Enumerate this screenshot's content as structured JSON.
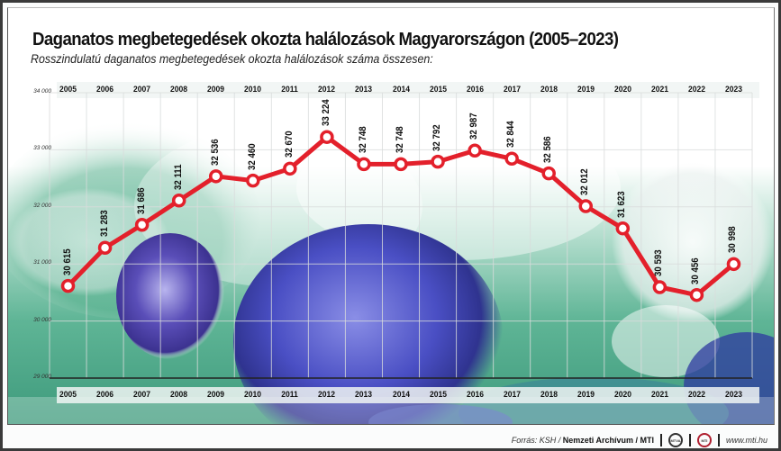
{
  "header": {
    "title": "Daganatos megbetegedések okozta halálozások Magyarországon (2005–2023)",
    "subtitle": "Rosszindulatú daganatos megbetegedések okozta halálozások száma összesen:"
  },
  "footer": {
    "source_prefix": "Forrás: KSH / ",
    "source_bold": "Nemzeti Archívum / MTI",
    "logo1": "MTVA",
    "logo2": "MTI",
    "url": "www.mti.hu"
  },
  "colors": {
    "line": "#e3202b",
    "grid": "#d9dcdc",
    "axis": "#222222"
  },
  "chart_data": {
    "type": "line",
    "title": "Daganatos megbetegedések okozta halálozások Magyarországon (2005–2023)",
    "subtitle": "Rosszindulatú daganatos megbetegedések okozta halálozások száma összesen:",
    "xlabel": "",
    "ylabel": "",
    "categories": [
      "2005",
      "2006",
      "2007",
      "2008",
      "2009",
      "2010",
      "2011",
      "2012",
      "2013",
      "2014",
      "2015",
      "2016",
      "2017",
      "2018",
      "2019",
      "2020",
      "2021",
      "2022",
      "2023"
    ],
    "series": [
      {
        "name": "Halálozások száma",
        "values": [
          30615,
          31283,
          31686,
          32111,
          32536,
          32460,
          32670,
          33224,
          32748,
          32748,
          32792,
          32987,
          32844,
          32586,
          32012,
          31623,
          30593,
          30456,
          30998
        ]
      }
    ],
    "value_labels": [
      "30 615",
      "31 283",
      "31 686",
      "32 111",
      "32 536",
      "32 460",
      "32 670",
      "33 224",
      "32 748",
      "32 748",
      "32 792",
      "32 987",
      "32 844",
      "32 586",
      "32 012",
      "31 623",
      "30 593",
      "30 456",
      "30 998"
    ],
    "ylim": [
      29000,
      34000
    ],
    "yticks": [
      34000,
      33000,
      32000,
      31000,
      30000,
      29000
    ],
    "ytick_labels": [
      "34 000",
      "33 000",
      "32 000",
      "31 000",
      "30 000",
      "29 000"
    ],
    "grid": true,
    "legend": null
  }
}
